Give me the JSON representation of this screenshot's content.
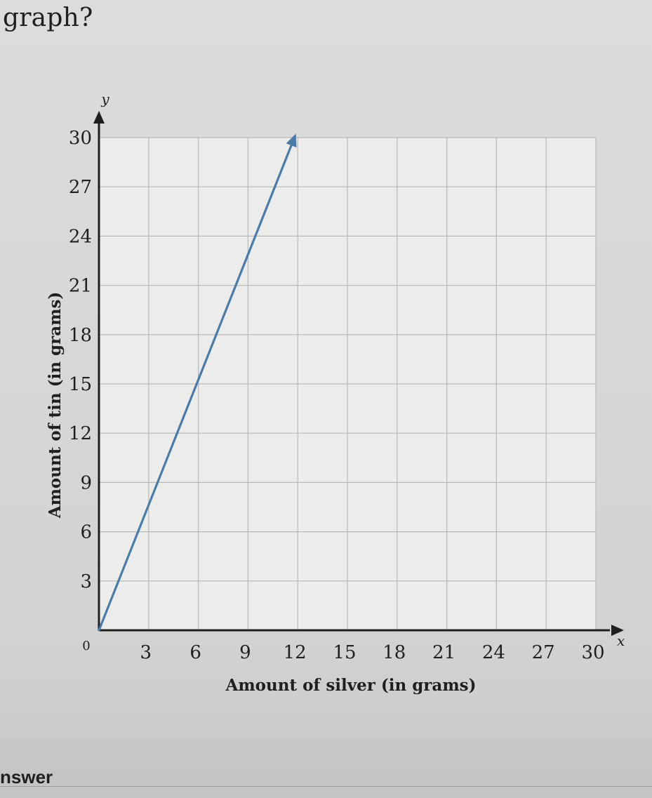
{
  "question": {
    "fragment": "graph?"
  },
  "answer": {
    "label": "nswer"
  },
  "chart_data": {
    "type": "line",
    "xlabel": "Amount of silver (in grams)",
    "ylabel": "Amount of tin (in grams)",
    "x_var": "x",
    "y_var": "y",
    "xlim": [
      0,
      30
    ],
    "ylim": [
      0,
      30
    ],
    "x_ticks": [
      3,
      6,
      9,
      12,
      15,
      18,
      21,
      24,
      27,
      30
    ],
    "y_ticks": [
      3,
      6,
      9,
      12,
      15,
      18,
      21,
      24,
      27,
      30
    ],
    "origin_label": "0",
    "grid": true,
    "line_color": "#4a7bab",
    "series": [
      {
        "points": [
          {
            "x": 0,
            "y": 0
          },
          {
            "x": 11.8,
            "y": 30
          }
        ]
      }
    ]
  }
}
